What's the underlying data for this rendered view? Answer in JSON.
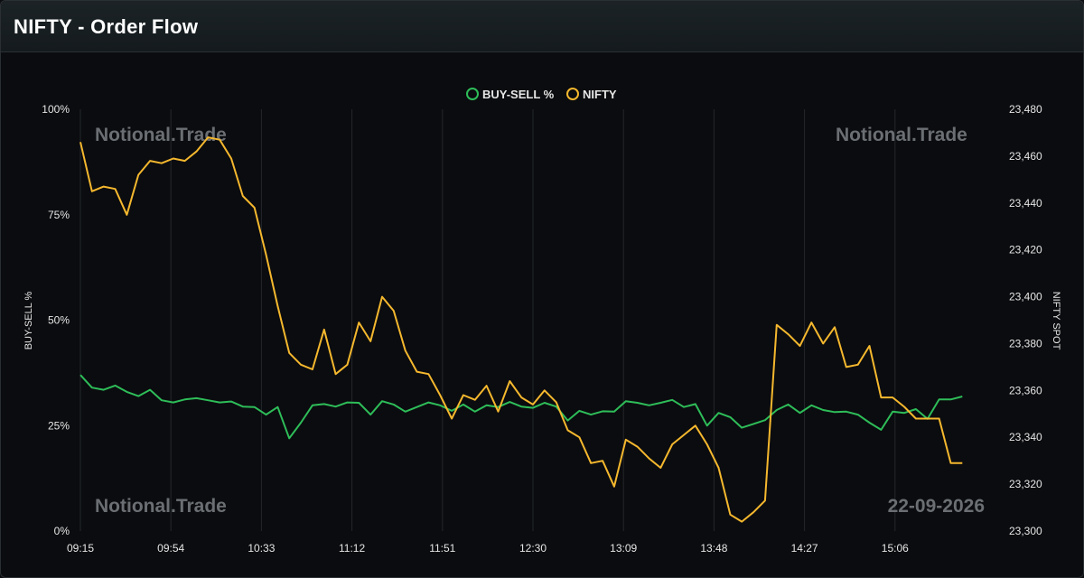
{
  "header": {
    "title": "NIFTY - Order Flow"
  },
  "watermarks": {
    "brand": "Notional.Trade",
    "date": "22-09-2026"
  },
  "colors": {
    "buy_sell": "#2ebd59",
    "nifty": "#f5b82e",
    "grid": "#23272b"
  },
  "chart_data": {
    "type": "line",
    "title": "",
    "x_ticks": [
      "09:15",
      "09:54",
      "10:33",
      "11:12",
      "11:51",
      "12:30",
      "13:09",
      "13:48",
      "14:27",
      "15:06"
    ],
    "y_left": {
      "label": "BUY-SELL %",
      "ticks": [
        "0%",
        "25%",
        "50%",
        "75%",
        "100%"
      ],
      "range": [
        0,
        100
      ]
    },
    "y_right": {
      "label": "NIFTY SPOT",
      "ticks": [
        "23,300",
        "23,320",
        "23,340",
        "23,360",
        "23,380",
        "23,400",
        "23,420",
        "23,440",
        "23,460",
        "23,480"
      ],
      "range": [
        23300,
        23480
      ]
    },
    "legend_position": "top-center",
    "grid": true,
    "series": [
      {
        "name": "BUY-SELL %",
        "axis": "left",
        "points": [
          [
            0,
            37
          ],
          [
            5,
            34
          ],
          [
            10,
            33.5
          ],
          [
            15,
            34.5
          ],
          [
            20,
            33
          ],
          [
            25,
            32
          ],
          [
            30,
            33.5
          ],
          [
            35,
            31
          ],
          [
            40,
            30.5
          ],
          [
            45,
            31.2
          ],
          [
            50,
            31.5
          ],
          [
            55,
            31
          ],
          [
            60,
            30.5
          ],
          [
            65,
            30.7
          ],
          [
            70,
            29.5
          ],
          [
            75,
            29.4
          ],
          [
            80,
            27.6
          ],
          [
            85,
            29.4
          ],
          [
            90,
            22
          ],
          [
            95,
            25.7
          ],
          [
            100,
            29.8
          ],
          [
            105,
            30.1
          ],
          [
            110,
            29.5
          ],
          [
            115,
            30.5
          ],
          [
            120,
            30.4
          ],
          [
            125,
            27.6
          ],
          [
            130,
            30.8
          ],
          [
            135,
            30
          ],
          [
            140,
            28.3
          ],
          [
            145,
            29.4
          ],
          [
            150,
            30.5
          ],
          [
            155,
            29.8
          ],
          [
            160,
            28.5
          ],
          [
            165,
            30
          ],
          [
            170,
            28.3
          ],
          [
            175,
            29.8
          ],
          [
            180,
            29.4
          ],
          [
            185,
            30.6
          ],
          [
            190,
            29.5
          ],
          [
            195,
            29.2
          ],
          [
            200,
            30.4
          ],
          [
            205,
            29.5
          ],
          [
            210,
            26.2
          ],
          [
            215,
            28.5
          ],
          [
            220,
            27.6
          ],
          [
            225,
            28.4
          ],
          [
            230,
            28.3
          ],
          [
            235,
            30.8
          ],
          [
            240,
            30.4
          ],
          [
            245,
            29.8
          ],
          [
            250,
            30.4
          ],
          [
            255,
            31.1
          ],
          [
            260,
            29.4
          ],
          [
            265,
            30.1
          ],
          [
            270,
            25
          ],
          [
            275,
            28
          ],
          [
            280,
            27
          ],
          [
            285,
            24.5
          ],
          [
            290,
            25.4
          ],
          [
            295,
            26.3
          ],
          [
            300,
            28.7
          ],
          [
            305,
            30
          ],
          [
            310,
            28
          ],
          [
            315,
            29.8
          ],
          [
            320,
            28.7
          ],
          [
            325,
            28.2
          ],
          [
            330,
            28.3
          ],
          [
            335,
            27.6
          ],
          [
            340,
            25.7
          ],
          [
            345,
            24
          ],
          [
            350,
            28.3
          ],
          [
            355,
            28
          ],
          [
            360,
            28.9
          ],
          [
            365,
            26.6
          ],
          [
            370,
            31.2
          ],
          [
            375,
            31.2
          ],
          [
            380,
            31.9
          ]
        ]
      },
      {
        "name": "NIFTY",
        "axis": "right",
        "points": [
          [
            0,
            23466
          ],
          [
            5,
            23445
          ],
          [
            10,
            23447
          ],
          [
            15,
            23446
          ],
          [
            20,
            23435
          ],
          [
            25,
            23452
          ],
          [
            30,
            23458
          ],
          [
            35,
            23457
          ],
          [
            40,
            23459
          ],
          [
            45,
            23458
          ],
          [
            50,
            23462
          ],
          [
            55,
            23468
          ],
          [
            60,
            23467
          ],
          [
            65,
            23459
          ],
          [
            70,
            23443
          ],
          [
            75,
            23438
          ],
          [
            80,
            23418
          ],
          [
            85,
            23396
          ],
          [
            90,
            23376
          ],
          [
            95,
            23371
          ],
          [
            100,
            23369
          ],
          [
            105,
            23386
          ],
          [
            110,
            23367
          ],
          [
            115,
            23371
          ],
          [
            120,
            23389
          ],
          [
            125,
            23381
          ],
          [
            130,
            23400
          ],
          [
            135,
            23394
          ],
          [
            140,
            23377
          ],
          [
            145,
            23368
          ],
          [
            150,
            23367
          ],
          [
            155,
            23358
          ],
          [
            160,
            23348
          ],
          [
            165,
            23358
          ],
          [
            170,
            23356
          ],
          [
            175,
            23362
          ],
          [
            180,
            23351
          ],
          [
            185,
            23364
          ],
          [
            190,
            23357
          ],
          [
            195,
            23354
          ],
          [
            200,
            23360
          ],
          [
            205,
            23355
          ],
          [
            210,
            23343
          ],
          [
            215,
            23340
          ],
          [
            220,
            23329
          ],
          [
            225,
            23330
          ],
          [
            230,
            23319
          ],
          [
            235,
            23339
          ],
          [
            240,
            23336
          ],
          [
            245,
            23331
          ],
          [
            250,
            23327
          ],
          [
            255,
            23337
          ],
          [
            260,
            23341
          ],
          [
            265,
            23345
          ],
          [
            270,
            23337
          ],
          [
            275,
            23327
          ],
          [
            280,
            23307
          ],
          [
            285,
            23304
          ],
          [
            290,
            23308
          ],
          [
            295,
            23313
          ],
          [
            300,
            23388
          ],
          [
            305,
            23384
          ],
          [
            310,
            23379
          ],
          [
            315,
            23389
          ],
          [
            320,
            23380
          ],
          [
            325,
            23387
          ],
          [
            330,
            23370
          ],
          [
            335,
            23371
          ],
          [
            340,
            23379
          ],
          [
            345,
            23357
          ],
          [
            350,
            23357
          ],
          [
            355,
            23353
          ],
          [
            360,
            23348
          ],
          [
            365,
            23348
          ],
          [
            370,
            23348
          ],
          [
            375,
            23329
          ],
          [
            380,
            23329
          ]
        ]
      }
    ]
  }
}
